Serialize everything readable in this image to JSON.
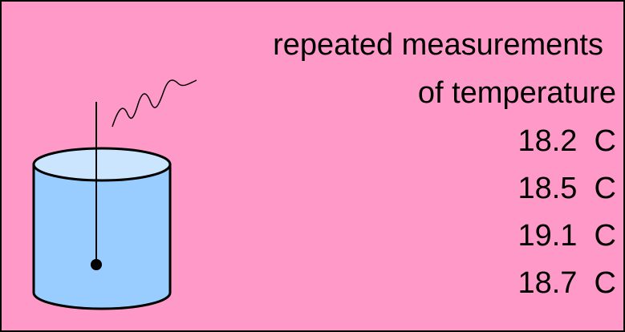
{
  "title": [
    "repeated measurements",
    "of temperature"
  ],
  "measurements": [
    "18.2  C",
    "18.5  C",
    "19.1  C",
    "18.7  C"
  ]
}
